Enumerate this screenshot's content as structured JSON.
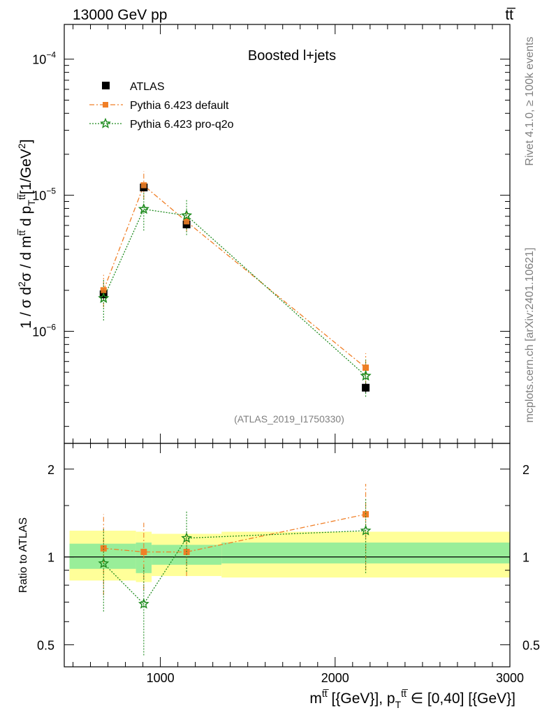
{
  "header": {
    "left": "13000 GeV pp",
    "right": "tt̅"
  },
  "side": {
    "rivet": "Rivet 4.1.0, ≥ 100k events",
    "mcplots": "mcplots.cern.ch [arXiv:2401.10621]"
  },
  "chart_data": {
    "type": "scatter",
    "title": "Boosted l+jets",
    "analysis_label": "(ATLAS_2019_I1750330)",
    "ylabel": "1 / σ d²σ / d m^tt̅ d p_T^tt̅ [1/GeV²]",
    "xlabel": "m^tt̅ [{GeV}], p_T^tt̅ ∈ [0,40] [{GeV}]",
    "xlim": [
      450,
      3000
    ],
    "ylim": [
      1.5e-07,
      0.00018
    ],
    "ratio_label": "Ratio to ATLAS",
    "ratio_ylim": [
      0.42,
      2.45
    ],
    "x_ticks": [
      {
        "v": 1000,
        "label": "1000"
      },
      {
        "v": 2000,
        "label": "2000"
      },
      {
        "v": 3000,
        "label": "3000"
      }
    ],
    "y_major_ticks": [
      {
        "v": 1e-06,
        "base": "10",
        "exp": "−6"
      },
      {
        "v": 1e-05,
        "base": "10",
        "exp": "−5"
      },
      {
        "v": 0.0001,
        "base": "10",
        "exp": "−4"
      }
    ],
    "ratio_ticks": [
      {
        "v": 0.5,
        "label": "0.5"
      },
      {
        "v": 1,
        "label": "1"
      },
      {
        "v": 2,
        "label": "2"
      }
    ],
    "bins": [
      [
        480,
        860
      ],
      [
        860,
        950
      ],
      [
        950,
        1350
      ],
      [
        1350,
        3000
      ]
    ],
    "data": {
      "name": "ATLAS",
      "x": [
        675,
        905,
        1150,
        2175
      ],
      "y": [
        1.87e-06,
        1.14e-05,
        6.1e-06,
        3.85e-07
      ],
      "yerr": [
        1.5e-07,
        7e-07,
        4e-07,
        3e-08
      ],
      "ratio_band_inner": [
        [
          0.91,
          1.11
        ],
        [
          0.88,
          1.12
        ],
        [
          0.94,
          1.1
        ],
        [
          0.95,
          1.12
        ]
      ],
      "ratio_band_outer": [
        [
          0.83,
          1.23
        ],
        [
          0.82,
          1.22
        ],
        [
          0.86,
          1.2
        ],
        [
          0.85,
          1.22
        ]
      ]
    },
    "series": [
      {
        "name": "Pythia 6.423 default",
        "color": "#f07f27",
        "marker": "square",
        "x": [
          675,
          905,
          1150,
          2175
        ],
        "y": [
          2e-06,
          1.18e-05,
          6.4e-06,
          5.4e-07
        ],
        "yerr_lo": [
          5e-07,
          2.5e-06,
          1e-06,
          1.4e-07
        ],
        "yerr_hi": [
          6e-07,
          3.2e-06,
          1.2e-06,
          1.5e-07
        ],
        "ratio": [
          1.07,
          1.04,
          1.04,
          1.4
        ],
        "ratio_err_lo": [
          0.33,
          0.27,
          0.18,
          0.5
        ],
        "ratio_err_hi": [
          0.33,
          0.27,
          0.18,
          0.38
        ]
      },
      {
        "name": "Pythia 6.423 pro-q2o",
        "color": "#1e8b1e",
        "marker": "star",
        "x": [
          675,
          905,
          1150,
          2175
        ],
        "y": [
          1.75e-06,
          7.9e-06,
          7.1e-06,
          4.7e-07
        ],
        "yerr_lo": [
          5.5e-07,
          2.4e-06,
          2e-06,
          1.4e-07
        ],
        "yerr_hi": [
          6.5e-07,
          2.6e-06,
          2.1e-06,
          1.5e-07
        ],
        "ratio": [
          0.95,
          0.69,
          1.16,
          1.23
        ],
        "ratio_err_lo": [
          0.3,
          0.23,
          0.27,
          0.35
        ],
        "ratio_err_hi": [
          0.3,
          0.23,
          0.27,
          0.35
        ]
      }
    ]
  }
}
